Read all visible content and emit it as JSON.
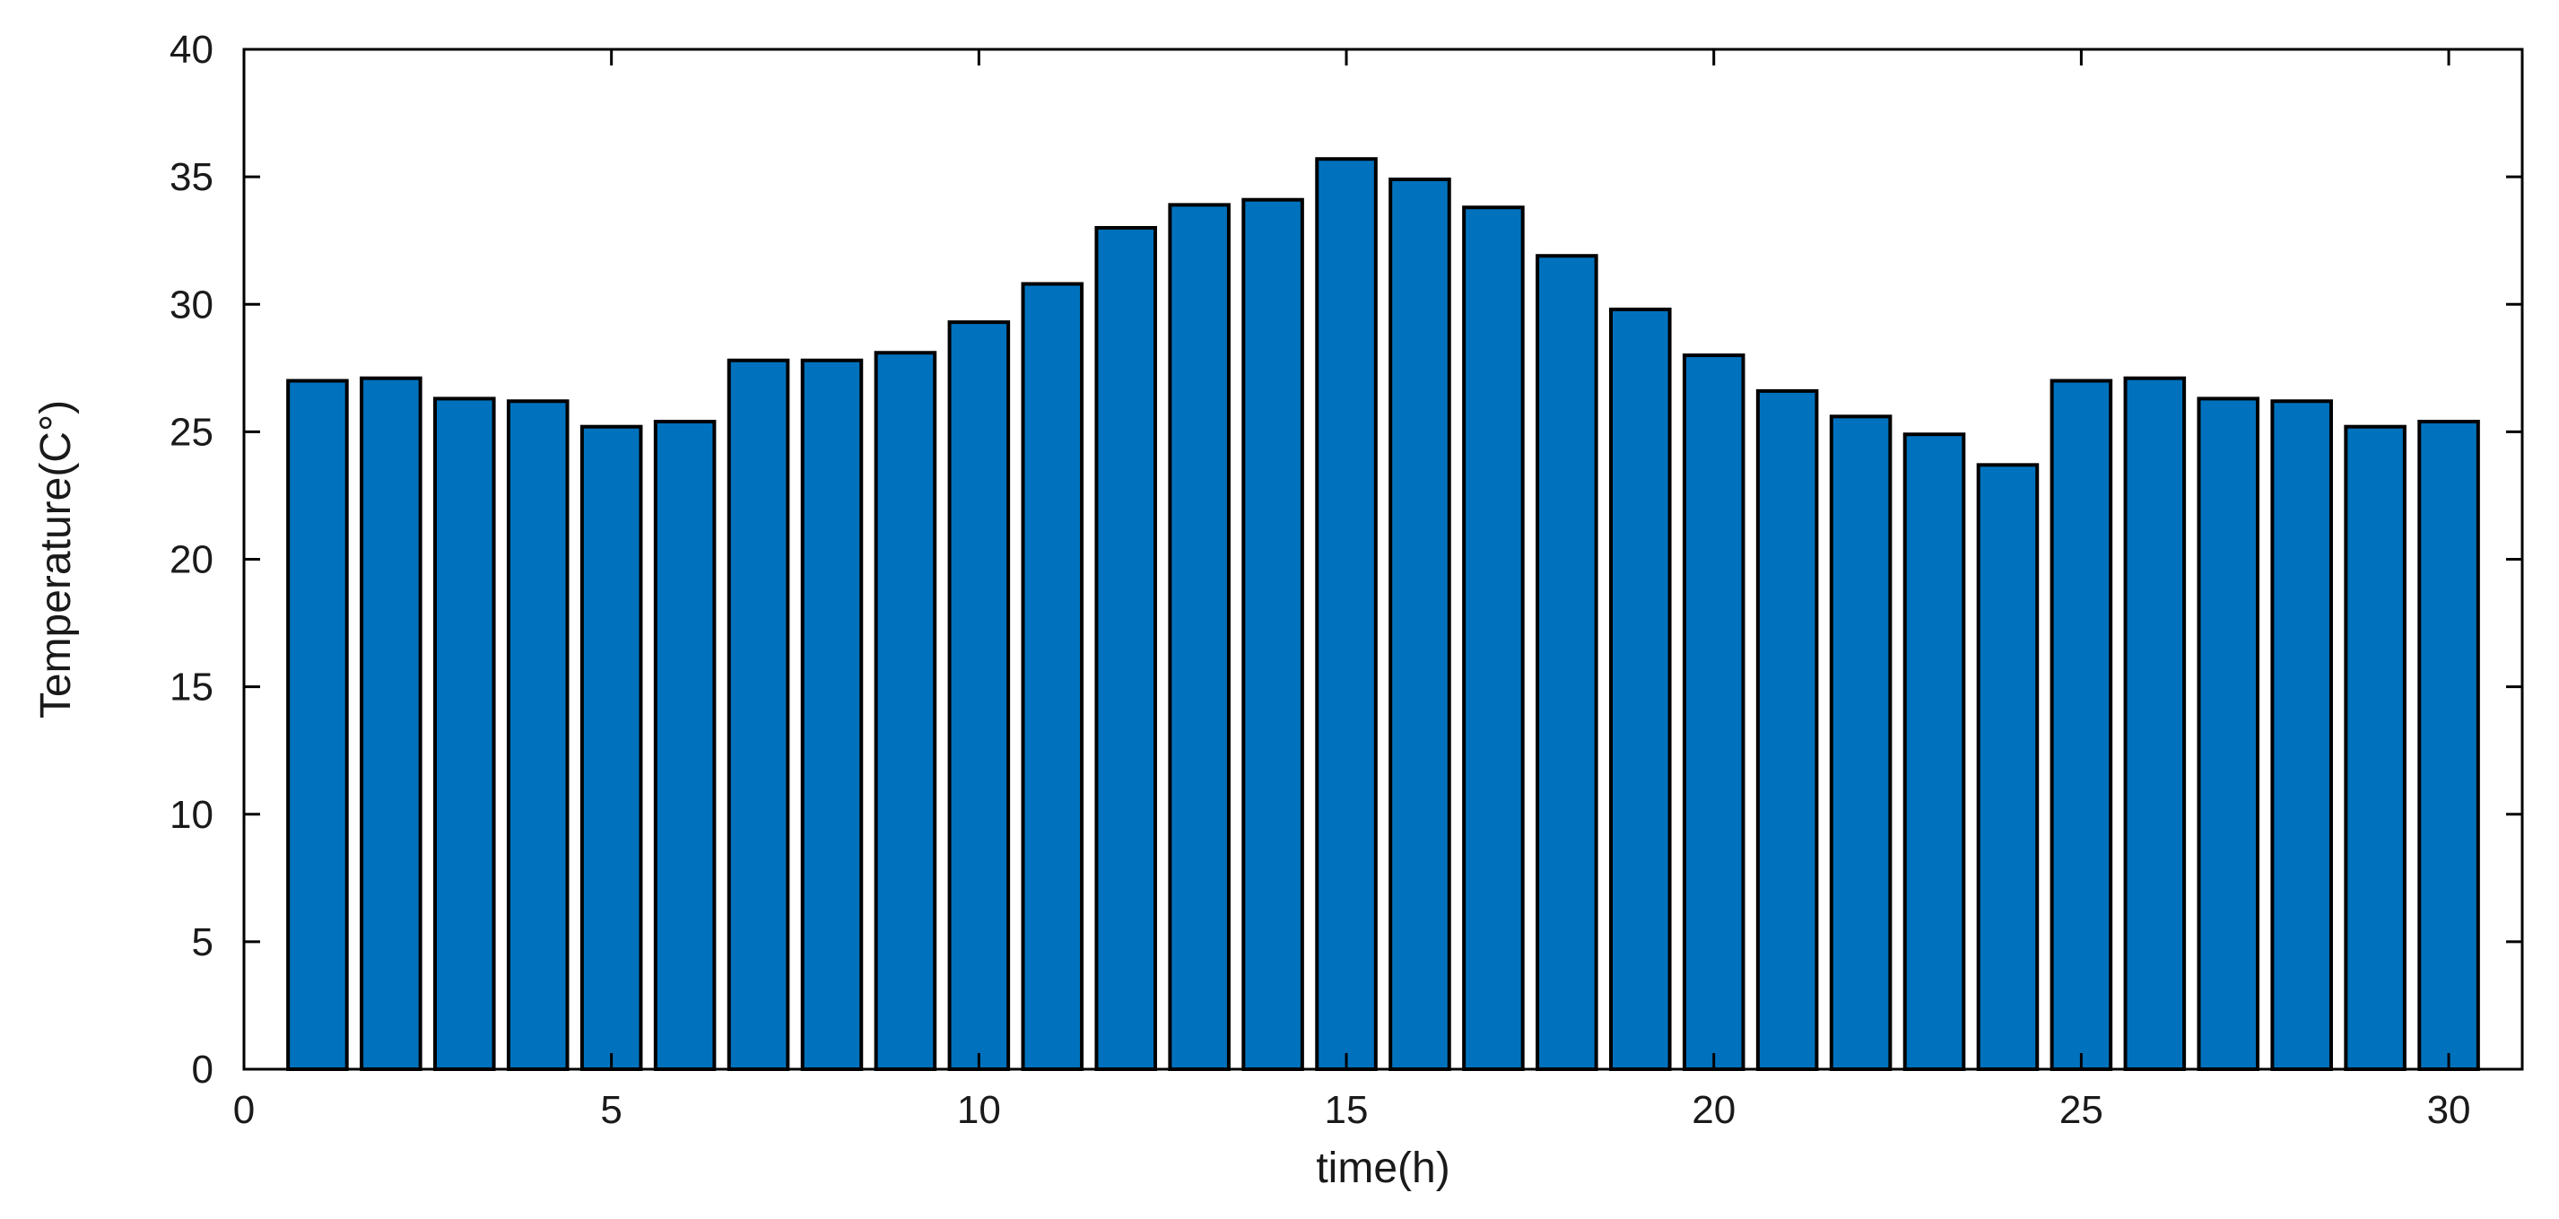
{
  "chart_data": {
    "type": "bar",
    "x": [
      1,
      2,
      3,
      4,
      5,
      6,
      7,
      8,
      9,
      10,
      11,
      12,
      13,
      14,
      15,
      16,
      17,
      18,
      19,
      20,
      21,
      22,
      23,
      24,
      25,
      26,
      27,
      28,
      29,
      30
    ],
    "values": [
      27.0,
      27.1,
      26.3,
      26.2,
      25.2,
      25.4,
      27.8,
      27.8,
      28.1,
      29.3,
      30.8,
      33.0,
      33.9,
      34.1,
      35.7,
      34.9,
      33.8,
      31.9,
      29.8,
      28.0,
      26.6,
      25.6,
      24.9,
      23.7,
      27.0,
      27.1,
      26.3,
      26.2,
      25.2,
      25.4
    ],
    "title": "",
    "xlabel": "time(h)",
    "ylabel": "Temperature(C°)",
    "xlim": [
      0,
      31
    ],
    "ylim": [
      0,
      40
    ],
    "xticks": [
      0,
      5,
      10,
      15,
      20,
      25,
      30
    ],
    "yticks": [
      0,
      5,
      10,
      15,
      20,
      25,
      30,
      35,
      40
    ],
    "bar_color": "#0072bd",
    "edge_color": "#000000",
    "grid": false,
    "box": true
  }
}
